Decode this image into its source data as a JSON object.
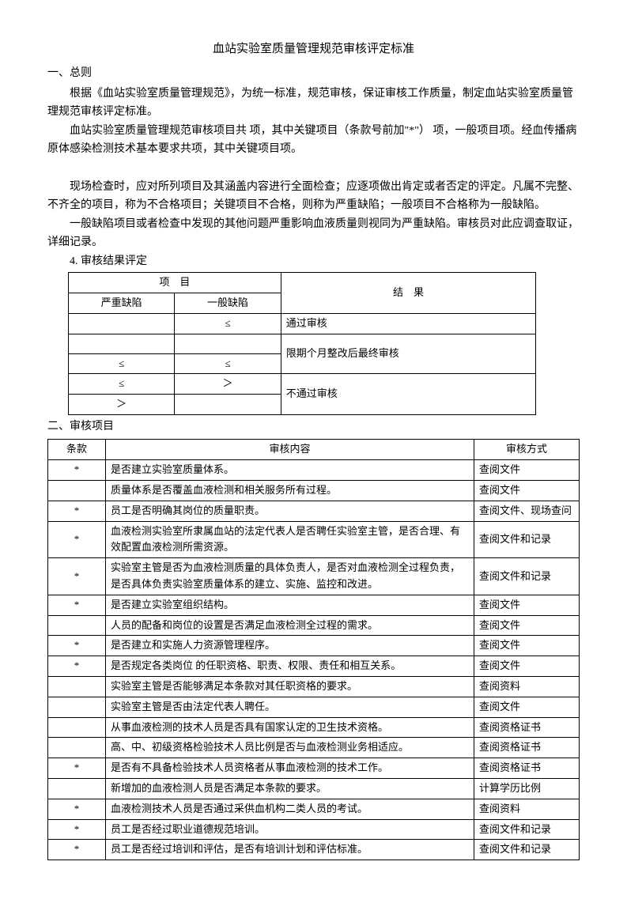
{
  "title": "血站实验室质量管理规范审核评定标准",
  "s1_head": "一、总则",
  "p1": "根据《血站实验室质量管理规范》，为统一标准，规范审核，保证审核工作质量，制定血站实验室质量管理规范审核评定标准。",
  "p2": "血站实验室质量管理规范审核项目共  项，其中关键项目（条款号前加\"*\"）  项，一般项目项。经血传播病原体感染检测技术基本要求共项，其中关键项目项。",
  "p3": "现场检查时，应对所列项目及其涵盖内容进行全面检查；应逐项做出肯定或者否定的评定。凡属不完整、不齐全的项目，称为不合格项目；关键项目不合格，则称为严重缺陷；一般项目不合格称为一般缺陷。",
  "p4": "一般缺陷项目或者检查中发现的其他问题严重影响血液质量则视同为严重缺陷。审核员对此应调查取证，详细记录。",
  "p5": "4.  审核结果评定",
  "t1": {
    "h_item": "项　目",
    "h_result": "结　果",
    "h_severe": "严重缺陷",
    "h_general": "一般缺陷",
    "rows": [
      {
        "a": "",
        "b": "≤",
        "c": "通过审核"
      },
      {
        "a": "",
        "b": "",
        "c": "限期个月整改后最终审核"
      },
      {
        "a": "≤",
        "b": "≤",
        "c_merge": true
      },
      {
        "a": "≤",
        "b": "＞",
        "c": "不通过审核"
      },
      {
        "a": "＞",
        "b": "",
        "c_merge": true
      }
    ]
  },
  "s2_head": "二、审核项目",
  "t2": {
    "h1": "条款",
    "h2": "审核内容",
    "h3": "审核方式",
    "rows": [
      {
        "k": "*",
        "c": "是否建立实验室质量体系。",
        "m": "查阅文件"
      },
      {
        "k": "",
        "c": "质量体系是否覆盖血液检测和相关服务所有过程。",
        "m": "查阅文件"
      },
      {
        "k": "*",
        "c": "员工是否明确其岗位的质量职责。",
        "m": "查阅文件、现场查问"
      },
      {
        "k": "*",
        "c": "血液检测实验室所隶属血站的法定代表人是否聘任实验室主管，是否合理、有效配置血液检测所需资源。",
        "m": "查阅文件和记录"
      },
      {
        "k": "*",
        "c": "实验室主管是否为血液检测质量的具体负责人，是否对血液检测全过程负责，是否具体负责实验室质量体系的建立、实施、监控和改进。",
        "m": "查阅文件和记录"
      },
      {
        "k": "*",
        "c": "是否建立实验室组织结构。",
        "m": "查阅文件"
      },
      {
        "k": "",
        "c": "人员的配备和岗位的设置是否满足血液检测全过程的需求。",
        "m": "查阅文件"
      },
      {
        "k": "*",
        "c": "是否建立和实施人力资源管理程序。",
        "m": "查阅文件"
      },
      {
        "k": "*",
        "c": "是否规定各类岗位 的任职资格、职责、权限、责任和相互关系。",
        "m": "查阅文件"
      },
      {
        "k": "",
        "c": "实验室主管是否能够满足本条款对其任职资格的要求。",
        "m": "查阅资料"
      },
      {
        "k": "",
        "c": "实验室主管是否由法定代表人聘任。",
        "m": "查阅文件"
      },
      {
        "k": "",
        "c": "从事血液检测的技术人员是否具有国家认定的卫生技术资格。",
        "m": "查阅资格证书"
      },
      {
        "k": "",
        "c": "高、中、初级资格检验技术人员比例是否与血液检测业务相适应。",
        "m": "查阅资格证书"
      },
      {
        "k": "*",
        "c": "是否有不具备检验技术人员资格者从事血液检测的技术工作。",
        "m": "查阅资格证书"
      },
      {
        "k": "",
        "c": "新增加的血液检测人员是否满足本条款的要求。",
        "m": "计算学历比例"
      },
      {
        "k": "*",
        "c": "血液检测技术人员是否通过采供血机构二类人员的考试。",
        "m": "查阅资料"
      },
      {
        "k": "*",
        "c": "员工是否经过职业道德规范培训。",
        "m": "查阅文件和记录"
      },
      {
        "k": "*",
        "c": "员工是否经过培训和评估，是否有培训计划和评估标准。",
        "m": "查阅文件和记录"
      }
    ]
  }
}
